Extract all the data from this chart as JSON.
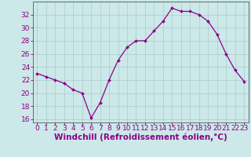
{
  "hours": [
    0,
    1,
    2,
    3,
    4,
    5,
    6,
    7,
    8,
    9,
    10,
    11,
    12,
    13,
    14,
    15,
    16,
    17,
    18,
    19,
    20,
    21,
    22,
    23
  ],
  "values": [
    23,
    22.5,
    22,
    21.5,
    20.5,
    20,
    16.2,
    18.5,
    22,
    25,
    27,
    28,
    28,
    29.5,
    31,
    33,
    32.5,
    32.5,
    32,
    31,
    29,
    26,
    23.5,
    21.8
  ],
  "line_color": "#8b008b",
  "marker": "D",
  "marker_size": 2.0,
  "bg_color": "#cce8e8",
  "grid_color": "#aacccc",
  "axis_label_color": "#8b008b",
  "tick_color": "#8b008b",
  "spine_color": "#555555",
  "xlabel": "Windchill (Refroidissement éolien,°C)",
  "ylim": [
    15.5,
    34
  ],
  "yticks": [
    16,
    18,
    20,
    22,
    24,
    26,
    28,
    30,
    32
  ],
  "xlim": [
    -0.5,
    23.5
  ],
  "xticks": [
    0,
    1,
    2,
    3,
    4,
    5,
    6,
    7,
    8,
    9,
    10,
    11,
    12,
    13,
    14,
    15,
    16,
    17,
    18,
    19,
    20,
    21,
    22,
    23
  ],
  "font_size_xlabel": 7.5,
  "font_size_ticks": 6.5
}
